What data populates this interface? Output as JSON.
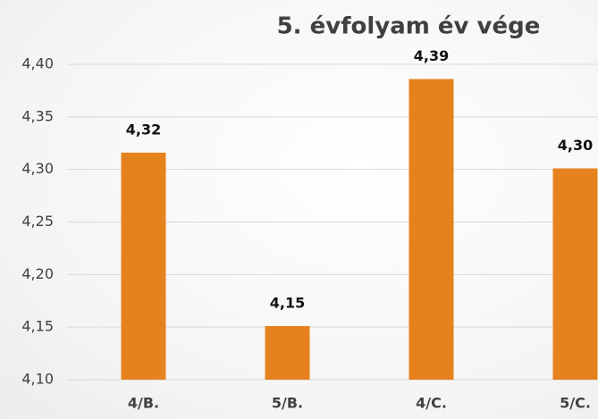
{
  "chart_data": {
    "type": "bar",
    "title": "5. évfolyam év vége",
    "categories": [
      "4/B.",
      "5/B.",
      "4/C.",
      "5/C."
    ],
    "values": [
      4.316,
      4.151,
      4.386,
      4.301
    ],
    "value_labels": [
      "4,32",
      "4,15",
      "4,39",
      "4,30"
    ],
    "color": "#e6821e",
    "ylim": [
      4.1,
      4.4
    ],
    "yticks": [
      {
        "value": 4.1,
        "label": "4,10"
      },
      {
        "value": 4.15,
        "label": "4,15"
      },
      {
        "value": 4.2,
        "label": "4,20"
      },
      {
        "value": 4.25,
        "label": "4,25"
      },
      {
        "value": 4.3,
        "label": "4,30"
      },
      {
        "value": 4.35,
        "label": "4,35"
      },
      {
        "value": 4.4,
        "label": "4,40"
      }
    ],
    "grid": true
  }
}
